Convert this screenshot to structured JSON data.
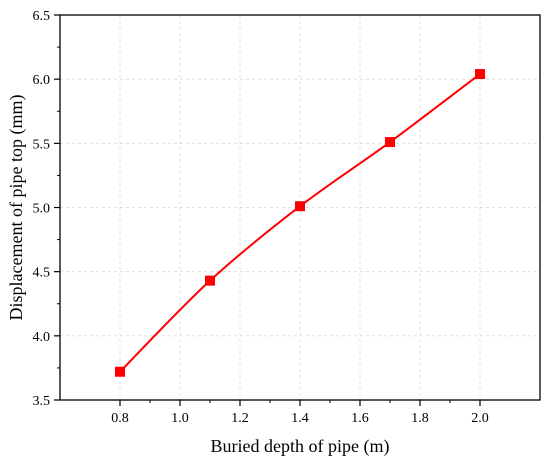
{
  "chart_data": {
    "type": "line",
    "xlabel": "Buried depth of pipe (m)",
    "ylabel": "Displacement of pipe top (mm)",
    "xlim": [
      0.6,
      2.2
    ],
    "ylim": [
      3.5,
      6.5
    ],
    "x_ticks": [
      "0.8",
      "1.0",
      "1.2",
      "1.4",
      "1.6",
      "1.8",
      "2.0"
    ],
    "y_ticks": [
      "3.5",
      "4.0",
      "4.5",
      "5.0",
      "5.5",
      "6.0",
      "6.5"
    ],
    "grid": true,
    "series": [
      {
        "color": "#ff0000",
        "marker": "square",
        "smooth": true,
        "x": [
          0.8,
          1.1,
          1.4,
          1.7,
          2.0
        ],
        "y": [
          3.72,
          4.43,
          5.01,
          5.51,
          6.04
        ]
      }
    ]
  }
}
